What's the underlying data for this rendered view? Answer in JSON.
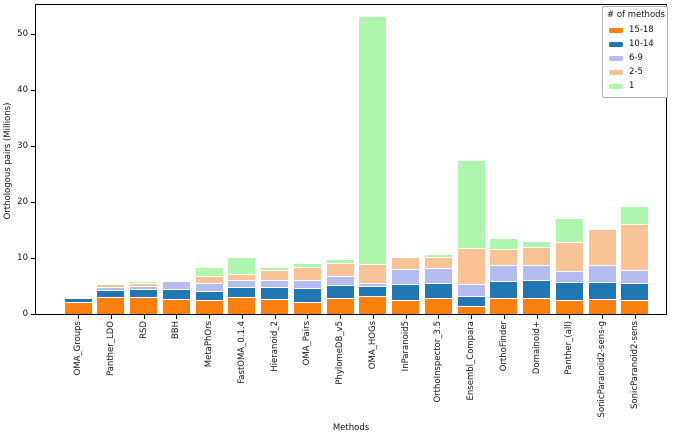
{
  "chart_data": {
    "type": "bar",
    "stacked": true,
    "xlabel": "Methods",
    "ylabel": "Orthologous pairs (Millions)",
    "ylim": [
      0,
      55.2
    ],
    "y_ticks": [
      0,
      10,
      20,
      30,
      40,
      50
    ],
    "grid": false,
    "legend_title": "# of methods",
    "legend_position": "upper right",
    "categories": [
      "OMA_Groups",
      "Panther_LDO",
      "RSD",
      "BBH",
      "MetaPhOrs",
      "FastOMA_0.1.4",
      "Hieranoid_2",
      "OMA_Pairs",
      "PhylomeDB_v5",
      "OMA_HOGs",
      "InParanoid5",
      "OrthoInspector_3.5",
      "Ensembl_Compara",
      "OrthoFinder",
      "Domainoid+",
      "Panther_(all)",
      "SonicParanoid2-sens-g",
      "SonicParanoid2-sens"
    ],
    "series": [
      {
        "name": "15-18",
        "color": "#fd800e",
        "values": [
          2.2,
          3.0,
          3.1,
          2.7,
          2.5,
          3.0,
          2.6,
          2.2,
          2.85,
          3.2,
          2.5,
          2.8,
          1.4,
          2.9,
          2.9,
          2.5,
          2.6,
          2.5
        ]
      },
      {
        "name": "10-14",
        "color": "#2077b4",
        "values": [
          0.65,
          1.3,
          1.3,
          1.8,
          1.7,
          1.9,
          2.3,
          2.4,
          2.4,
          1.8,
          2.8,
          2.75,
          1.75,
          3.0,
          3.1,
          3.2,
          3.2,
          3.1
        ]
      },
      {
        "name": "6-9",
        "color": "#b5bdf0",
        "values": [
          0,
          0.55,
          0.65,
          1.4,
          1.3,
          1.2,
          1.2,
          1.55,
          1.55,
          0.6,
          2.8,
          2.75,
          2.3,
          2.8,
          2.8,
          2.0,
          2.9,
          2.2
        ]
      },
      {
        "name": "2-5",
        "color": "#f9c396",
        "values": [
          0,
          0.55,
          0.55,
          0.2,
          1.35,
          1.05,
          1.8,
          2.25,
          2.35,
          3.4,
          2.1,
          1.9,
          6.3,
          3.0,
          3.2,
          5.1,
          6.5,
          8.2
        ]
      },
      {
        "name": "1",
        "color": "#aef5ae",
        "values": [
          0,
          0,
          0.3,
          0,
          1.5,
          3.1,
          0.45,
          0.7,
          0.7,
          44.3,
          0,
          0.5,
          15.8,
          1.8,
          1.0,
          4.3,
          0,
          3.3
        ]
      }
    ],
    "totals": [
      2.85,
      5.4,
      5.9,
      6.1,
      8.35,
      10.25,
      8.35,
      9.1,
      9.85,
      53.3,
      10.2,
      10.7,
      27.55,
      13.5,
      13.0,
      17.1,
      15.2,
      19.3
    ]
  }
}
